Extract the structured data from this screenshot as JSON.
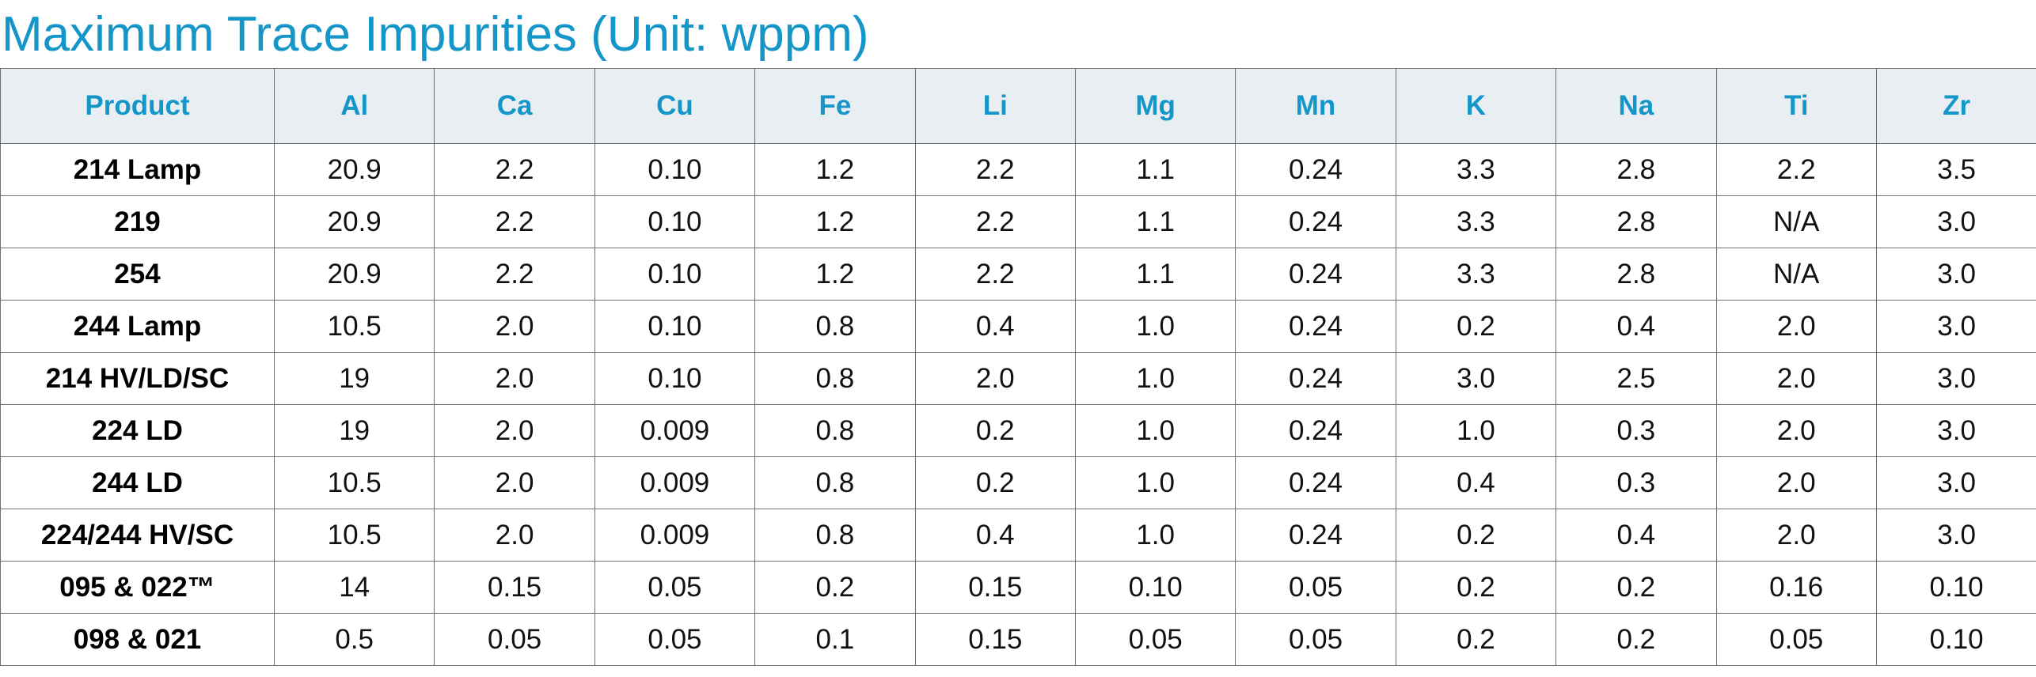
{
  "title": "Maximum Trace Impurities (Unit: wppm)",
  "table": {
    "headers": [
      "Product",
      "Al",
      "Ca",
      "Cu",
      "Fe",
      "Li",
      "Mg",
      "Mn",
      "K",
      "Na",
      "Ti",
      "Zr"
    ],
    "rows": [
      [
        "214 Lamp",
        "20.9",
        "2.2",
        "0.10",
        "1.2",
        "2.2",
        "1.1",
        "0.24",
        "3.3",
        "2.8",
        "2.2",
        "3.5"
      ],
      [
        "219",
        "20.9",
        "2.2",
        "0.10",
        "1.2",
        "2.2",
        "1.1",
        "0.24",
        "3.3",
        "2.8",
        "N/A",
        "3.0"
      ],
      [
        "254",
        "20.9",
        "2.2",
        "0.10",
        "1.2",
        "2.2",
        "1.1",
        "0.24",
        "3.3",
        "2.8",
        "N/A",
        "3.0"
      ],
      [
        "244 Lamp",
        "10.5",
        "2.0",
        "0.10",
        "0.8",
        "0.4",
        "1.0",
        "0.24",
        "0.2",
        "0.4",
        "2.0",
        "3.0"
      ],
      [
        "214 HV/LD/SC",
        "19",
        "2.0",
        "0.10",
        "0.8",
        "2.0",
        "1.0",
        "0.24",
        "3.0",
        "2.5",
        "2.0",
        "3.0"
      ],
      [
        "224 LD",
        "19",
        "2.0",
        "0.009",
        "0.8",
        "0.2",
        "1.0",
        "0.24",
        "1.0",
        "0.3",
        "2.0",
        "3.0"
      ],
      [
        "244 LD",
        "10.5",
        "2.0",
        "0.009",
        "0.8",
        "0.2",
        "1.0",
        "0.24",
        "0.4",
        "0.3",
        "2.0",
        "3.0"
      ],
      [
        "224/244 HV/SC",
        "10.5",
        "2.0",
        "0.009",
        "0.8",
        "0.4",
        "1.0",
        "0.24",
        "0.2",
        "0.4",
        "2.0",
        "3.0"
      ],
      [
        "095 & 022™",
        "14",
        "0.15",
        "0.05",
        "0.2",
        "0.15",
        "0.10",
        "0.05",
        "0.2",
        "0.2",
        "0.16",
        "0.10"
      ],
      [
        "098 & 021",
        "0.5",
        "0.05",
        "0.05",
        "0.1",
        "0.15",
        "0.05",
        "0.05",
        "0.2",
        "0.2",
        "0.05",
        "0.10"
      ]
    ]
  },
  "colors": {
    "accent": "#1596c8",
    "header_bg": "#e9eef2",
    "border": "#6f6f6f",
    "text": "#111111"
  }
}
